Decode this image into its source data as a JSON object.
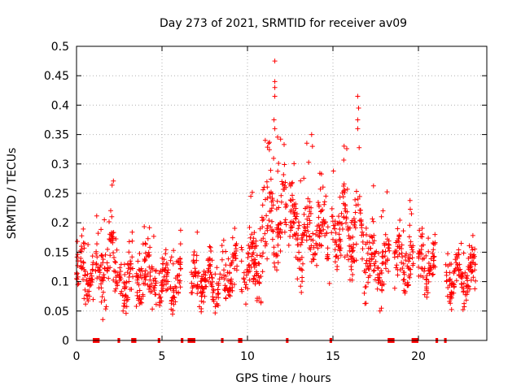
{
  "chart_data": {
    "type": "scatter",
    "title": "Day 273 of 2021, SRMTID for receiver av09",
    "xlabel": "GPS time / hours",
    "ylabel": "SRMTID / TECUs",
    "xlim": [
      0,
      24
    ],
    "ylim": [
      0,
      0.5
    ],
    "grid": true,
    "x_ticks": [
      0,
      5,
      10,
      15,
      20
    ],
    "x_tick_labels": [
      "0",
      "5",
      "10",
      "15",
      "20"
    ],
    "y_ticks": [
      0,
      0.05,
      0.1,
      0.15,
      0.2,
      0.25,
      0.3,
      0.35,
      0.4,
      0.45,
      0.5
    ],
    "y_tick_labels": [
      "0",
      "0.05",
      "0.1",
      "0.15",
      "0.2",
      "0.25",
      "0.3",
      "0.35",
      "0.4",
      "0.45",
      "0.5"
    ],
    "marker": "+",
    "color": "#ff0000",
    "series": [
      {
        "name": "SRMTID",
        "segments": [
          {
            "start": 0.0,
            "end": 1.0,
            "base": 0.11,
            "spread": 0.05
          },
          {
            "start": 1.1,
            "end": 2.4,
            "base": 0.125,
            "spread": 0.065
          },
          {
            "start": 2.5,
            "end": 3.3,
            "base": 0.1,
            "spread": 0.045
          },
          {
            "start": 3.5,
            "end": 4.7,
            "base": 0.11,
            "spread": 0.05
          },
          {
            "start": 4.8,
            "end": 6.1,
            "base": 0.1,
            "spread": 0.045
          },
          {
            "start": 6.7,
            "end": 8.4,
            "base": 0.1,
            "spread": 0.04
          },
          {
            "start": 8.5,
            "end": 9.4,
            "base": 0.12,
            "spread": 0.05
          },
          {
            "start": 9.6,
            "end": 10.8,
            "base": 0.13,
            "spread": 0.06
          },
          {
            "start": 10.8,
            "end": 12.3,
            "base": 0.2,
            "spread": 0.08
          },
          {
            "start": 12.4,
            "end": 14.8,
            "base": 0.18,
            "spread": 0.07
          },
          {
            "start": 14.9,
            "end": 16.8,
            "base": 0.19,
            "spread": 0.07
          },
          {
            "start": 16.8,
            "end": 18.3,
            "base": 0.13,
            "spread": 0.06
          },
          {
            "start": 18.6,
            "end": 19.7,
            "base": 0.13,
            "spread": 0.05
          },
          {
            "start": 20.0,
            "end": 21.0,
            "base": 0.12,
            "spread": 0.045
          },
          {
            "start": 21.6,
            "end": 23.4,
            "base": 0.11,
            "spread": 0.04
          }
        ],
        "spikes": [
          {
            "x": 11.6,
            "y": 0.475
          },
          {
            "x": 11.6,
            "y": 0.44
          },
          {
            "x": 11.6,
            "y": 0.43
          },
          {
            "x": 11.6,
            "y": 0.415
          },
          {
            "x": 11.55,
            "y": 0.375
          },
          {
            "x": 11.6,
            "y": 0.36
          },
          {
            "x": 16.45,
            "y": 0.415
          },
          {
            "x": 16.5,
            "y": 0.395
          },
          {
            "x": 16.45,
            "y": 0.375
          },
          {
            "x": 16.45,
            "y": 0.36
          },
          {
            "x": 13.75,
            "y": 0.35
          },
          {
            "x": 13.8,
            "y": 0.33
          }
        ]
      }
    ],
    "data_gaps_at_zero": [
      {
        "start": 0.95,
        "end": 1.35
      },
      {
        "start": 2.4,
        "end": 2.55
      },
      {
        "start": 3.2,
        "end": 3.5
      },
      {
        "start": 4.75,
        "end": 4.9
      },
      {
        "start": 6.1,
        "end": 6.25
      },
      {
        "start": 6.5,
        "end": 6.95
      },
      {
        "start": 8.45,
        "end": 8.6
      },
      {
        "start": 9.45,
        "end": 9.7
      },
      {
        "start": 12.25,
        "end": 12.4
      },
      {
        "start": 14.8,
        "end": 14.95
      },
      {
        "start": 18.2,
        "end": 18.6
      },
      {
        "start": 19.6,
        "end": 20.0
      },
      {
        "start": 21.0,
        "end": 21.15
      },
      {
        "start": 21.5,
        "end": 21.65
      }
    ]
  }
}
